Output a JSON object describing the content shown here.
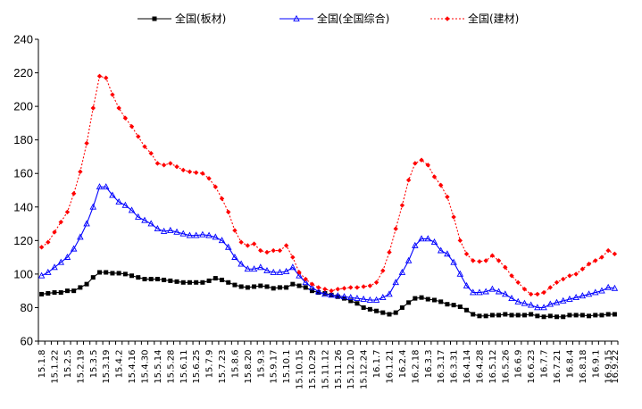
{
  "chart_data": {
    "type": "line",
    "ylim": [
      60,
      240
    ],
    "yticks": [
      60,
      80,
      100,
      120,
      140,
      160,
      180,
      200,
      220,
      240
    ],
    "grid": false,
    "legend_position": "top",
    "x": [
      "15.1.8",
      "15.1.15",
      "15.1.22",
      "15.1.29",
      "15.2.5",
      "15.2.12",
      "15.2.19",
      "15.2.26",
      "15.3.5",
      "15.3.12",
      "15.3.19",
      "15.3.26",
      "15.4.2",
      "15.4.9",
      "15.4.16",
      "15.4.23",
      "15.4.30",
      "15.5.7",
      "15.5.14",
      "15.5.21",
      "15.5.28",
      "15.6.4",
      "15.6.11",
      "15.6.18",
      "15.6.25",
      "15.7.2",
      "15.7.9",
      "15.7.16",
      "15.7.23",
      "15.7.30",
      "15.8.6",
      "15.8.13",
      "15.8.20",
      "15.8.27",
      "15.9.3",
      "15.9.10",
      "15.9.17",
      "15.9.24",
      "15.10.1",
      "15.10.8",
      "15.10.15",
      "15.10.22",
      "15.10.29",
      "15.11.5",
      "15.11.12",
      "15.11.19",
      "15.11.26",
      "15.12.3",
      "15.12.10",
      "15.12.17",
      "15.12.24",
      "15.12.31",
      "16.1.7",
      "16.1.14",
      "16.1.21",
      "16.1.28",
      "16.2.4",
      "16.2.11",
      "16.2.18",
      "16.2.25",
      "16.3.3",
      "16.3.10",
      "16.3.17",
      "16.3.24",
      "16.3.31",
      "16.4.7",
      "16.4.14",
      "16.4.21",
      "16.4.28",
      "16.5.5",
      "16.5.12",
      "16.5.19",
      "16.5.26",
      "16.6.2",
      "16.6.9",
      "16.6.16",
      "16.6.23",
      "16.6.30",
      "16.7.7",
      "16.7.14",
      "16.7.21",
      "16.7.28",
      "16.8.4",
      "16.8.11",
      "16.8.18",
      "16.8.25",
      "16.9.1",
      "16.9.8",
      "16.9.15",
      "16.9.22"
    ],
    "xticklabels": [
      "15.1.8",
      "15.1.22",
      "15.2.5",
      "15.2.19",
      "15.3.5",
      "15.3.19",
      "15.4.2",
      "15.4.16",
      "15.4.30",
      "15.5.14",
      "15.5.28",
      "15.6.11",
      "15.6.25",
      "15.7.9",
      "15.7.23",
      "15.8.6",
      "15.8.20",
      "15.9.3",
      "15.9.17",
      "15.10.1",
      "15.10.15",
      "15.10.29",
      "15.11.12",
      "15.11.26",
      "15.12.10",
      "15.12.24",
      "16.1.7",
      "16.1.21",
      "16.2.4",
      "16.2.18",
      "16.3.3",
      "16.3.17",
      "16.3.31",
      "16.4.14",
      "16.4.28",
      "16.5.12",
      "16.5.26",
      "16.6.9",
      "16.6.23",
      "16.7.7",
      "16.7.21",
      "16.8.4",
      "16.8.18",
      "16.9.1",
      "16.9.15",
      "16.9.22"
    ],
    "series": [
      {
        "name": "全国(板材)",
        "color": "#000000",
        "marker": "square",
        "dash": false,
        "values": [
          88,
          88.5,
          89,
          89,
          90,
          90,
          92,
          94,
          98,
          101,
          101,
          100.5,
          100.5,
          100,
          99,
          98,
          97,
          97,
          97,
          96.5,
          96,
          95.5,
          95,
          95,
          95,
          95,
          96,
          97.5,
          96.5,
          95,
          93.5,
          92.5,
          92,
          92.5,
          93,
          92.5,
          91.5,
          92,
          92,
          94,
          93,
          92,
          90,
          89,
          88.5,
          87.5,
          86.5,
          85.5,
          84,
          82.5,
          80,
          79,
          78,
          77,
          76,
          77,
          80,
          83,
          85.5,
          86,
          85,
          84.5,
          83.5,
          82,
          81.5,
          80.5,
          78.5,
          76,
          75,
          75,
          75.5,
          75.5,
          76,
          75.5,
          75.5,
          75.5,
          76,
          75,
          74.5,
          75,
          74.5,
          74.5,
          75.5,
          75.5,
          75.5,
          75,
          75.5,
          75.5,
          76,
          76
        ]
      },
      {
        "name": "全国(全国综合)",
        "color": "#0000ff",
        "marker": "triangle",
        "dash": false,
        "values": [
          99,
          101,
          104,
          107,
          110,
          115,
          122,
          130,
          140,
          152,
          152,
          147,
          143,
          141,
          138,
          134,
          132,
          130,
          127,
          125.5,
          126,
          125,
          124,
          123,
          123,
          123.5,
          123,
          122,
          120,
          116,
          110,
          106,
          103,
          103,
          104,
          102,
          101,
          101,
          101.5,
          104,
          99,
          95,
          92,
          89.5,
          88,
          87.5,
          87,
          86.5,
          86,
          85.5,
          85,
          84.5,
          84.5,
          86,
          88,
          95,
          101,
          108,
          117,
          121,
          121,
          119,
          114,
          112,
          107,
          100,
          93,
          89,
          89,
          89.5,
          91,
          89.5,
          88,
          85.5,
          83.5,
          82.5,
          81.5,
          80,
          80,
          82,
          83,
          84,
          85,
          86,
          87,
          88,
          89,
          90,
          92,
          91.5
        ]
      },
      {
        "name": "全国(建材)",
        "color": "#ff0000",
        "marker": "diamond",
        "dash": true,
        "values": [
          116,
          119,
          125,
          131,
          137,
          148,
          161,
          178,
          199,
          218,
          217,
          207,
          199,
          193,
          188,
          182,
          176,
          172,
          166,
          165,
          166,
          164,
          162,
          161,
          160.5,
          160,
          157,
          152,
          145,
          137,
          126,
          119,
          117,
          118,
          114,
          113,
          114,
          114,
          117,
          110,
          101,
          97,
          94,
          92,
          91,
          90,
          91,
          91.5,
          92,
          92,
          92.5,
          93,
          95,
          102,
          113,
          127,
          141,
          156,
          166,
          168,
          165,
          158,
          153,
          146,
          134,
          120,
          112,
          108,
          107.5,
          108,
          111,
          108,
          104,
          99,
          95,
          91,
          88,
          88,
          89,
          92,
          95,
          97,
          99,
          100,
          103,
          106,
          108,
          110,
          114,
          112
        ]
      }
    ]
  }
}
